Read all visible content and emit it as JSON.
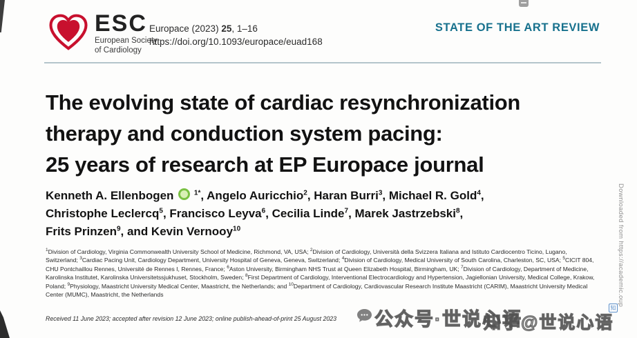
{
  "colors": {
    "accent_teal": "#17718d",
    "logo_red": "#c8102e",
    "orcid_green": "#7ac143"
  },
  "icons": {
    "logo": "esc-heart-icon",
    "author_badge": "orcid-icon",
    "watermark_bubble": "chat-bubble-icon",
    "zhihu_badge": "zhihu-logo-icon"
  },
  "header": {
    "logo": {
      "abbr": "ESC",
      "society_line1": "European Society",
      "society_line2": "of Cardiology"
    },
    "citation": {
      "journal": "Europace (2023) ",
      "volume": "25",
      "pages": ", 1–16"
    },
    "doi": "https://doi.org/10.1093/europace/euad168",
    "article_type": "STATE OF THE ART REVIEW"
  },
  "article": {
    "title_lines": [
      "The evolving state of cardiac resynchronization",
      "therapy and conduction system pacing:",
      "25 years of research at EP Europace journal"
    ],
    "author_lines": [
      [
        {
          "t": "Kenneth A. Ellenbogen "
        },
        {
          "icon": "orcid"
        },
        {
          "t": " "
        },
        {
          "sup": "1*"
        },
        {
          "t": ", Angelo Auricchio"
        },
        {
          "sup": "2"
        },
        {
          "t": ", Haran Burri"
        },
        {
          "sup": "3"
        },
        {
          "t": ", Michael R. Gold"
        },
        {
          "sup": "4"
        },
        {
          "t": ","
        }
      ],
      [
        {
          "t": "Christophe Leclercq"
        },
        {
          "sup": "5"
        },
        {
          "t": ", Francisco Leyva"
        },
        {
          "sup": "6"
        },
        {
          "t": ", Cecilia Linde"
        },
        {
          "sup": "7"
        },
        {
          "t": ", Marek Jastrzebski"
        },
        {
          "sup": "8"
        },
        {
          "t": ","
        }
      ],
      [
        {
          "t": "Frits Prinzen"
        },
        {
          "sup": "9"
        },
        {
          "t": ", and Kevin Vernooy"
        },
        {
          "sup": "10"
        }
      ]
    ],
    "affiliation_segments": [
      {
        "sup": "1"
      },
      {
        "t": "Division of Cardiology, Virginia Commonwealth University School of Medicine, Richmond, VA, USA; "
      },
      {
        "sup": "2"
      },
      {
        "t": "Division of Cardiology, Università della Svizzera Italiana and Istituto Cardiocentro Ticino, Lugano, Switzerland; "
      },
      {
        "sup": "3"
      },
      {
        "t": "Cardiac Pacing Unit, Cardiology Department, University Hospital of Geneva, Geneva, Switzerland; "
      },
      {
        "sup": "4"
      },
      {
        "t": "Division of Cardiology, Medical University of South Carolina, Charleston, SC, USA; "
      },
      {
        "sup": "5"
      },
      {
        "t": "CICIT 804, CHU Pontchaillou Rennes, Université de Rennes I, Rennes, France; "
      },
      {
        "sup": "6"
      },
      {
        "t": "Aston University, Birmingham NHS Trust at Queen Elizabeth Hospital, Birmingham, UK; "
      },
      {
        "sup": "7"
      },
      {
        "t": "Division of Cardiology, Department of Medicine, Karolinska Institutet, Karolinska Universitetssjukhuset, Stockholm, Sweden; "
      },
      {
        "sup": "8"
      },
      {
        "t": "First Department of Cardiology, Interventional Electrocardiology and Hypertension, Jagiellonian University, Medical College, Krakow, Poland; "
      },
      {
        "sup": "9"
      },
      {
        "t": "Physiology, Maastricht University Medical Center, Maastricht, the Netherlands; and "
      },
      {
        "sup": "10"
      },
      {
        "t": "Department of Cardiology, Cardiovascular Research Institute Maastricht (CARIM), Maastricht University Medical Center (MUMC), Maastricht, the Netherlands"
      }
    ],
    "received": "Received 11 June 2023; accepted after revision 12 June 2023; online publish-ahead-of-print 25 August 2023"
  },
  "overlays": {
    "watermark1": "公众号·世说心语",
    "watermark2": "知乎@世说心语",
    "zhihu_glyph": "知",
    "download_note": "Downloaded from https://academic.oup"
  }
}
